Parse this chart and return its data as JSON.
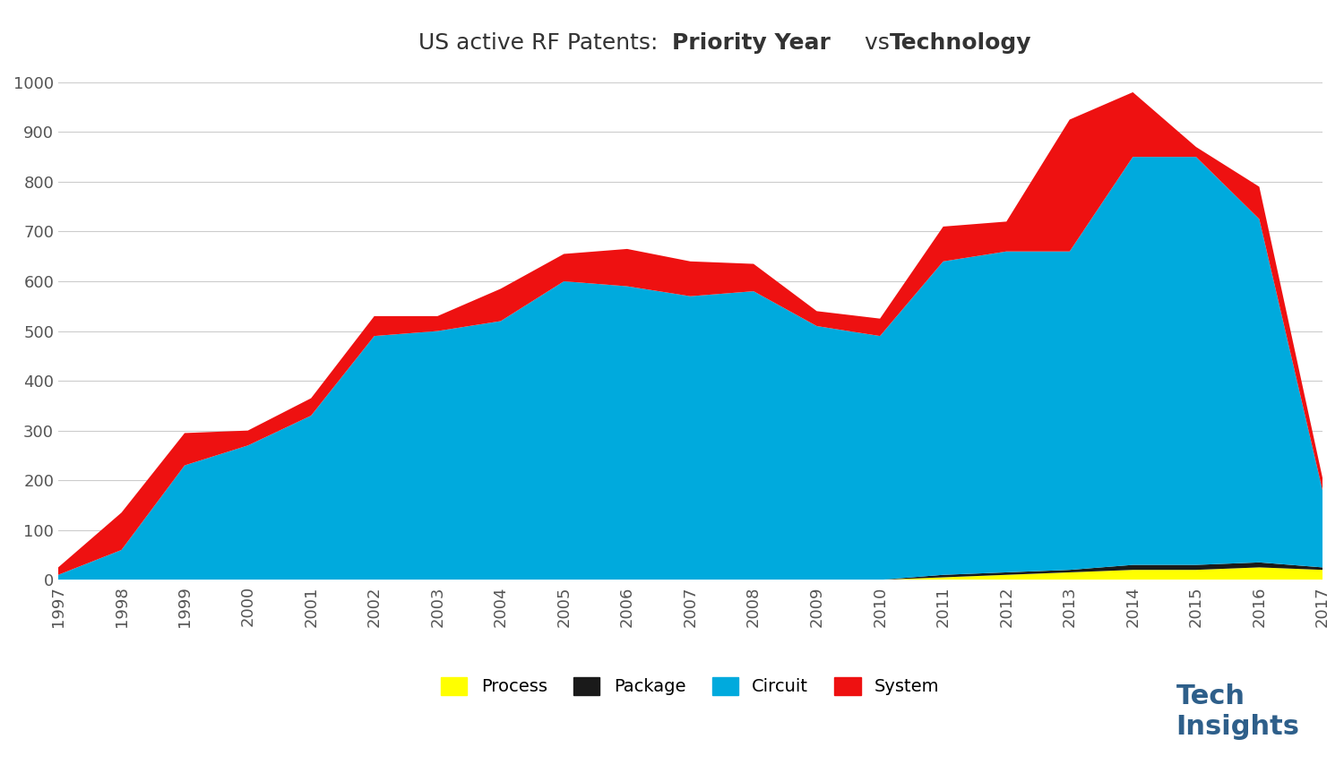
{
  "years": [
    1997,
    1998,
    1999,
    2000,
    2001,
    2002,
    2003,
    2004,
    2005,
    2006,
    2007,
    2008,
    2009,
    2010,
    2011,
    2012,
    2013,
    2014,
    2015,
    2016,
    2017
  ],
  "process": [
    0,
    0,
    0,
    0,
    0,
    0,
    0,
    0,
    0,
    0,
    0,
    0,
    0,
    0,
    5,
    10,
    15,
    20,
    20,
    25,
    20
  ],
  "package": [
    0,
    0,
    0,
    0,
    0,
    0,
    0,
    0,
    0,
    0,
    0,
    0,
    0,
    0,
    5,
    5,
    5,
    10,
    10,
    10,
    5
  ],
  "circuit": [
    10,
    60,
    230,
    270,
    330,
    490,
    500,
    520,
    600,
    590,
    570,
    580,
    510,
    490,
    630,
    645,
    640,
    820,
    820,
    690,
    155
  ],
  "system": [
    15,
    75,
    65,
    30,
    35,
    40,
    30,
    65,
    55,
    75,
    70,
    55,
    30,
    35,
    70,
    60,
    265,
    130,
    20,
    65,
    25
  ],
  "colors": {
    "process": "#FFFF00",
    "package": "#1a1a1a",
    "circuit": "#00AADD",
    "system": "#EE1111"
  },
  "ylim": [
    0,
    1000
  ],
  "yticks": [
    0,
    100,
    200,
    300,
    400,
    500,
    600,
    700,
    800,
    900,
    1000
  ],
  "bg_color": "#FFFFFF",
  "grid_color": "#CCCCCC",
  "legend_labels": [
    "Process",
    "Package",
    "Circuit",
    "System"
  ],
  "techinsights_color": "#2E5F8A",
  "title_part1": "US active RF Patents:  ",
  "title_bold1": "Priority Year",
  "title_part2": " vs ",
  "title_bold2": "Technology"
}
